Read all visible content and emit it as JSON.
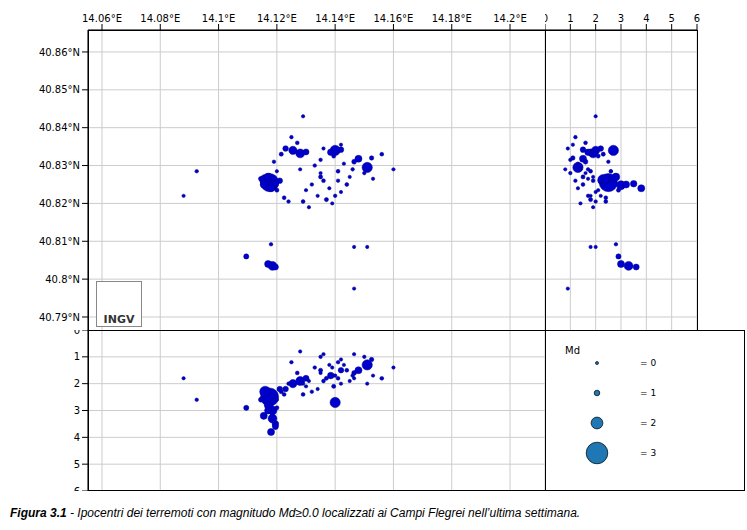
{
  "chart_data": {
    "type": "scatter",
    "color": "#0000cd",
    "grid": true,
    "logo": "INGV",
    "xlim": [
      14.0552,
      14.212
    ],
    "xticks": [
      {
        "value": 14.06,
        "label": "14.06°E"
      },
      {
        "value": 14.08,
        "label": "14.08°E"
      },
      {
        "value": 14.1,
        "label": "14.1°E"
      },
      {
        "value": 14.12,
        "label": "14.12°E"
      },
      {
        "value": 14.14,
        "label": "14.14°E"
      },
      {
        "value": 14.16,
        "label": "14.16°E"
      },
      {
        "value": 14.18,
        "label": "14.18°E"
      },
      {
        "value": 14.2,
        "label": "14.2°E"
      }
    ],
    "ylim": [
      40.7863,
      40.8658
    ],
    "yticks": [
      {
        "value": 40.79,
        "label": "40.79°N"
      },
      {
        "value": 40.8,
        "label": "40.8°N"
      },
      {
        "value": 40.81,
        "label": "40.81°N"
      },
      {
        "value": 40.82,
        "label": "40.82°N"
      },
      {
        "value": 40.83,
        "label": "40.83°N"
      },
      {
        "value": 40.84,
        "label": "40.84°N"
      },
      {
        "value": 40.85,
        "label": "40.85°N"
      },
      {
        "value": 40.86,
        "label": "40.86°N"
      }
    ],
    "depth_lim": [
      0,
      6
    ],
    "depth_ticks": [
      0,
      1,
      2,
      3,
      4,
      5,
      6
    ],
    "legend": {
      "title": "Md",
      "color": "#1f77b4",
      "values": [
        0,
        1,
        2,
        3
      ],
      "labels": [
        "= 0",
        "= 1",
        "= 2",
        "= 3"
      ]
    },
    "events": [
      {
        "lon": 14.1175,
        "lat": 40.8255,
        "depth": 2.5,
        "md": 2.7
      },
      {
        "lon": 14.116,
        "lat": 40.8262,
        "depth": 2.3,
        "md": 1.9
      },
      {
        "lon": 14.1185,
        "lat": 40.8248,
        "depth": 3.0,
        "md": 1.6
      },
      {
        "lon": 14.117,
        "lat": 40.827,
        "depth": 2.8,
        "md": 1.4
      },
      {
        "lon": 14.1155,
        "lat": 40.825,
        "depth": 3.2,
        "md": 1.3
      },
      {
        "lon": 14.1195,
        "lat": 40.8252,
        "depth": 3.5,
        "md": 1.2
      },
      {
        "lon": 14.118,
        "lat": 40.824,
        "depth": 3.8,
        "md": 1.3
      },
      {
        "lon": 14.121,
        "lat": 40.826,
        "depth": 2.2,
        "md": 1.0
      },
      {
        "lon": 14.1145,
        "lat": 40.8265,
        "depth": 2.6,
        "md": 0.8
      },
      {
        "lon": 14.12,
        "lat": 40.8235,
        "depth": 2.9,
        "md": 0.6
      },
      {
        "lon": 14.1225,
        "lat": 40.8215,
        "depth": 2.4,
        "md": 0.5
      },
      {
        "lon": 14.124,
        "lat": 40.8205,
        "depth": 2.0,
        "md": 0.4
      },
      {
        "lon": 14.1255,
        "lat": 40.834,
        "depth": 2.0,
        "md": 1.5
      },
      {
        "lon": 14.128,
        "lat": 40.8332,
        "depth": 1.9,
        "md": 1.6
      },
      {
        "lon": 14.123,
        "lat": 40.8345,
        "depth": 2.2,
        "md": 1.0
      },
      {
        "lon": 14.13,
        "lat": 40.8336,
        "depth": 1.8,
        "md": 1.1
      },
      {
        "lon": 14.1215,
        "lat": 40.833,
        "depth": 2.3,
        "md": 0.6
      },
      {
        "lon": 14.127,
        "lat": 40.836,
        "depth": 1.6,
        "md": 0.5
      },
      {
        "lon": 14.125,
        "lat": 40.8375,
        "depth": 1.2,
        "md": 0.4
      },
      {
        "lon": 14.14,
        "lat": 40.834,
        "depth": 2.7,
        "md": 1.8
      },
      {
        "lon": 14.1385,
        "lat": 40.8335,
        "depth": 1.7,
        "md": 1.2
      },
      {
        "lon": 14.142,
        "lat": 40.8342,
        "depth": 1.5,
        "md": 1.0
      },
      {
        "lon": 14.1395,
        "lat": 40.8325,
        "depth": 2.1,
        "md": 0.6
      },
      {
        "lon": 14.151,
        "lat": 40.8295,
        "depth": 1.3,
        "md": 1.8
      },
      {
        "lon": 14.148,
        "lat": 40.8318,
        "depth": 1.5,
        "md": 1.3
      },
      {
        "lon": 14.1465,
        "lat": 40.831,
        "depth": 1.6,
        "md": 0.8
      },
      {
        "lon": 14.1525,
        "lat": 40.832,
        "depth": 1.1,
        "md": 0.7
      },
      {
        "lon": 14.156,
        "lat": 40.833,
        "depth": 1.8,
        "md": 0.5
      },
      {
        "lon": 14.15,
        "lat": 40.828,
        "depth": 1.0,
        "md": 0.4
      },
      {
        "lon": 14.133,
        "lat": 40.83,
        "depth": 1.4,
        "md": 0.4
      },
      {
        "lon": 14.135,
        "lat": 40.828,
        "depth": 1.6,
        "md": 0.3
      },
      {
        "lon": 14.136,
        "lat": 40.826,
        "depth": 1.9,
        "md": 0.5
      },
      {
        "lon": 14.138,
        "lat": 40.824,
        "depth": 1.3,
        "md": 0.3
      },
      {
        "lon": 14.14,
        "lat": 40.822,
        "depth": 1.7,
        "md": 0.4
      },
      {
        "lon": 14.142,
        "lat": 40.823,
        "depth": 2.0,
        "md": 0.3
      },
      {
        "lon": 14.144,
        "lat": 40.825,
        "depth": 1.5,
        "md": 0.5
      },
      {
        "lon": 14.134,
        "lat": 40.822,
        "depth": 2.2,
        "md": 0.3
      },
      {
        "lon": 14.137,
        "lat": 40.821,
        "depth": 1.8,
        "md": 0.6
      },
      {
        "lon": 14.139,
        "lat": 40.82,
        "depth": 1.4,
        "md": 0.3
      },
      {
        "lon": 14.141,
        "lat": 40.826,
        "depth": 1.2,
        "md": 0.4
      },
      {
        "lon": 14.145,
        "lat": 40.827,
        "depth": 1.9,
        "md": 0.3
      },
      {
        "lon": 14.132,
        "lat": 40.825,
        "depth": 2.3,
        "md": 0.4
      },
      {
        "lon": 14.13,
        "lat": 40.8235,
        "depth": 2.1,
        "md": 0.3
      },
      {
        "lon": 14.129,
        "lat": 40.8205,
        "depth": 2.4,
        "md": 0.5
      },
      {
        "lon": 14.131,
        "lat": 40.819,
        "depth": 1.9,
        "md": 0.3
      },
      {
        "lon": 14.146,
        "lat": 40.829,
        "depth": 1.7,
        "md": 0.4
      },
      {
        "lon": 14.143,
        "lat": 40.8305,
        "depth": 1.3,
        "md": 0.3
      },
      {
        "lon": 14.135,
        "lat": 40.8315,
        "depth": 1.0,
        "md": 0.4
      },
      {
        "lon": 14.128,
        "lat": 40.829,
        "depth": 0.8,
        "md": 0.3
      },
      {
        "lon": 14.16,
        "lat": 40.829,
        "depth": 1.4,
        "md": 0.3
      },
      {
        "lon": 14.153,
        "lat": 40.8265,
        "depth": 1.7,
        "md": 0.3
      },
      {
        "lon": 14.142,
        "lat": 40.8355,
        "depth": 1.1,
        "md": 0.3
      },
      {
        "lon": 14.136,
        "lat": 40.8345,
        "depth": 0.9,
        "md": 0.3
      },
      {
        "lon": 14.119,
        "lat": 40.831,
        "depth": 2.5,
        "md": 0.4
      },
      {
        "lon": 14.12,
        "lat": 40.8285,
        "depth": 2.6,
        "md": 0.3
      },
      {
        "lon": 14.135,
        "lat": 40.827,
        "depth": 1.5,
        "md": 0.6
      },
      {
        "lon": 14.141,
        "lat": 40.8285,
        "depth": 1.8,
        "md": 0.5
      },
      {
        "lon": 14.1185,
        "lat": 40.8035,
        "depth": 3.3,
        "md": 1.6
      },
      {
        "lon": 14.117,
        "lat": 40.804,
        "depth": 3.0,
        "md": 1.3
      },
      {
        "lon": 14.1195,
        "lat": 40.8032,
        "depth": 3.6,
        "md": 1.1
      },
      {
        "lon": 14.1095,
        "lat": 40.806,
        "depth": 2.9,
        "md": 0.9
      },
      {
        "lon": 14.118,
        "lat": 40.8092,
        "depth": 2.8,
        "md": 0.4
      },
      {
        "lon": 14.1465,
        "lat": 40.8085,
        "depth": 1.8,
        "md": 0.3
      },
      {
        "lon": 14.151,
        "lat": 40.8085,
        "depth": 2.0,
        "md": 0.3
      },
      {
        "lon": 14.1465,
        "lat": 40.7975,
        "depth": 0.9,
        "md": 0.3
      },
      {
        "lon": 14.088,
        "lat": 40.822,
        "depth": 1.8,
        "md": 0.3
      },
      {
        "lon": 14.0925,
        "lat": 40.8285,
        "depth": 2.6,
        "md": 0.4
      },
      {
        "lon": 14.129,
        "lat": 40.843,
        "depth": 2.0,
        "md": 0.3
      }
    ]
  },
  "caption": {
    "label": "Figura 3.1",
    "text": " - Ipocentri dei terremoti con magnitudo Md≥0.0 localizzati ai Campi Flegrei nell’ultima settimana."
  }
}
